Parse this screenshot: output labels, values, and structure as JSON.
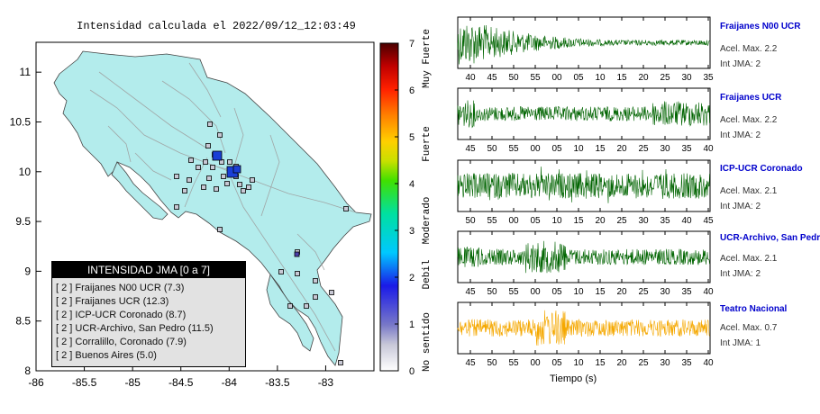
{
  "map": {
    "title": "Intensidad calculada el 2022/09/12_12:03:49",
    "lat_ticks": [
      "11",
      "10.5",
      "10",
      "9.5",
      "9",
      "8.5",
      "8"
    ],
    "lon_ticks": [
      "-86",
      "-85.5",
      "-85",
      "-84.5",
      "-84",
      "-83.5",
      "-83"
    ],
    "lat_range": [
      8.0,
      11.3
    ],
    "lon_range": [
      -86.0,
      -82.5
    ],
    "epicenter_color": "#1a3fd6",
    "legend": {
      "title": "INTENSIDAD JMA [0 a 7]",
      "rows": [
        "[ 2 ]  Fraijanes N00 UCR (7.3)",
        "[ 2 ]  Fraijanes UCR (12.3)",
        "[ 2 ]  ICP-UCR Coronado (8.7)",
        "[ 2 ]  UCR-Archivo, San Pedro (11.5)",
        "[ 2 ]  Corralillo, Coronado (7.9)",
        "[ 2 ]  Buenos Aires (5.0)"
      ]
    }
  },
  "colorbar": {
    "ticks": [
      "7",
      "6",
      "5",
      "4",
      "3",
      "2",
      "1",
      "0"
    ],
    "labels": [
      "Muy Fuerte",
      "Fuerte",
      "Moderado",
      "Debil",
      "No sentido"
    ]
  },
  "stations": [
    {
      "name": "Fraijanes N00 UCR",
      "accel": "Acel. Max. 2.2",
      "jma": "Int JMA: 2",
      "color": "#006400",
      "ticks": [
        "40",
        "45",
        "50",
        "55",
        "00",
        "05",
        "10",
        "15",
        "20",
        "25",
        "30",
        "35"
      ]
    },
    {
      "name": "Fraijanes UCR",
      "accel": "Acel. Max. 2.2",
      "jma": "Int JMA: 2",
      "color": "#006400",
      "ticks": [
        "45",
        "50",
        "55",
        "00",
        "05",
        "10",
        "15",
        "20",
        "25",
        "30",
        "35",
        "40"
      ]
    },
    {
      "name": "ICP-UCR Coronado",
      "accel": "Acel. Max. 2.1",
      "jma": "Int JMA: 2",
      "color": "#006400",
      "ticks": [
        "50",
        "55",
        "00",
        "05",
        "10",
        "15",
        "20",
        "25",
        "30",
        "35",
        "40",
        "45"
      ]
    },
    {
      "name": "UCR-Archivo, San Pedro",
      "accel": "Acel. Max. 2.1",
      "jma": "Int JMA: 2",
      "color": "#006400",
      "ticks": [
        "45",
        "50",
        "55",
        "00",
        "05",
        "10",
        "15",
        "20",
        "25",
        "30",
        "35",
        "40"
      ]
    },
    {
      "name": "Teatro Nacional",
      "accel": "Acel. Max. 0.7",
      "jma": "Int JMA: 1",
      "color": "#f5a800",
      "ticks": [
        "45",
        "50",
        "55",
        "00",
        "05",
        "10",
        "15",
        "20",
        "25",
        "30",
        "35",
        "40"
      ]
    }
  ],
  "time_axis_label": "Tiempo (s)"
}
